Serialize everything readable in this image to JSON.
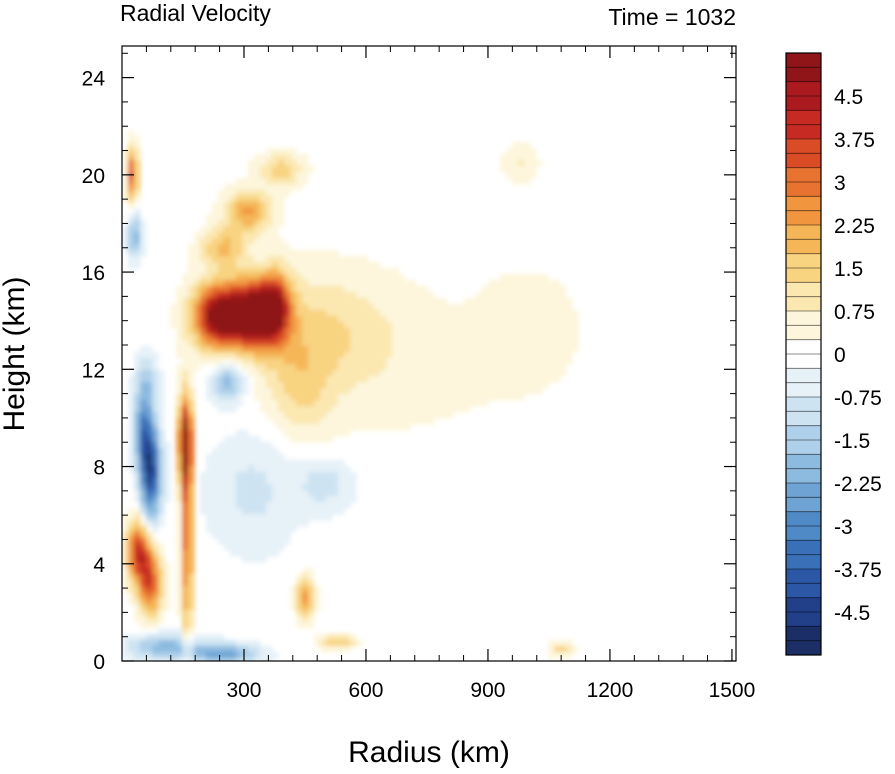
{
  "chart_data": {
    "type": "heatmap",
    "title": "Radial Velocity",
    "time_label": "Time = 1032",
    "xlabel": "Radius (km)",
    "ylabel": "Height (km)",
    "xlim": [
      0,
      1510
    ],
    "ylim": [
      0,
      25.3
    ],
    "x_ticks": [
      300,
      600,
      900,
      1200,
      1500
    ],
    "x_tick_labels": [
      "300",
      "600",
      "900",
      "1200",
      "1500"
    ],
    "y_ticks": [
      0,
      4,
      8,
      12,
      16,
      20,
      24
    ],
    "y_tick_labels": [
      "0",
      "4",
      "8",
      "12",
      "16",
      "20",
      "24"
    ],
    "colorbar": {
      "min": -5.25,
      "max": 5.25,
      "step": 0.25,
      "tick_labels": [
        "4.5",
        "3.75",
        "3",
        "2.25",
        "1.5",
        "0.75",
        "0",
        "-0.75",
        "-1.5",
        "-2.25",
        "-3",
        "-3.75",
        "-4.5"
      ],
      "tick_values": [
        4.5,
        3.75,
        3,
        2.25,
        1.5,
        0.75,
        0,
        -0.75,
        -1.5,
        -2.25,
        -3,
        -3.75,
        -4.5
      ],
      "colors": [
        "#1b2f66",
        "#223f8a",
        "#2b57a6",
        "#3a70b8",
        "#4f89c6",
        "#6ea3d4",
        "#8dbbe0",
        "#aed0ea",
        "#cde3f2",
        "#e6f1f8",
        "#ffffff",
        "#fdf6dc",
        "#fbe7b0",
        "#f8d380",
        "#f5b658",
        "#f1953f",
        "#e8722f",
        "#da4c26",
        "#c62a22",
        "#ab1a1f",
        "#8f1519"
      ]
    },
    "features": [
      {
        "r": 240,
        "z": 14.2,
        "sr": 45,
        "sz": 0.9,
        "v": 5.3
      },
      {
        "r": 330,
        "z": 14.3,
        "sr": 40,
        "sz": 0.9,
        "v": 5.3
      },
      {
        "r": 380,
        "z": 14.6,
        "sr": 25,
        "sz": 1.0,
        "v": 3.2
      },
      {
        "r": 470,
        "z": 13.5,
        "sr": 140,
        "sz": 1.8,
        "v": 1.2
      },
      {
        "r": 1000,
        "z": 13.8,
        "sr": 80,
        "sz": 1.5,
        "v": 0.6
      },
      {
        "r": 700,
        "z": 12.0,
        "sr": 250,
        "sz": 2.5,
        "v": 0.35
      },
      {
        "r": 155,
        "z": 9.0,
        "sr": 12,
        "sz": 1.3,
        "v": 4.8
      },
      {
        "r": 160,
        "z": 5.0,
        "sr": 10,
        "sz": 3.0,
        "v": 3.2
      },
      {
        "r": 70,
        "z": 7.8,
        "sr": 18,
        "sz": 1.4,
        "v": -4.5
      },
      {
        "r": 50,
        "z": 9.5,
        "sr": 15,
        "sz": 1.0,
        "v": -2.5
      },
      {
        "r": 40,
        "z": 4.5,
        "sr": 20,
        "sz": 0.9,
        "v": 3.8
      },
      {
        "r": 70,
        "z": 3.2,
        "sr": 20,
        "sz": 1.0,
        "v": 3.3
      },
      {
        "r": 25,
        "z": 20.0,
        "sr": 10,
        "sz": 0.8,
        "v": 3.5
      },
      {
        "r": 30,
        "z": 17.5,
        "sr": 12,
        "sz": 0.7,
        "v": -2.2
      },
      {
        "r": 60,
        "z": 11.5,
        "sr": 20,
        "sz": 0.8,
        "v": -1.5
      },
      {
        "r": 260,
        "z": 11.5,
        "sr": 30,
        "sz": 0.6,
        "v": -2.2
      },
      {
        "r": 250,
        "z": 17.0,
        "sr": 40,
        "sz": 0.6,
        "v": 1.8
      },
      {
        "r": 310,
        "z": 18.5,
        "sr": 40,
        "sz": 0.6,
        "v": 2.3
      },
      {
        "r": 390,
        "z": 20.2,
        "sr": 40,
        "sz": 0.5,
        "v": 1.5
      },
      {
        "r": 450,
        "z": 2.6,
        "sr": 15,
        "sz": 0.6,
        "v": 2.6
      },
      {
        "r": 320,
        "z": 7.0,
        "sr": 80,
        "sz": 1.8,
        "v": -0.9
      },
      {
        "r": 500,
        "z": 7.3,
        "sr": 50,
        "sz": 0.8,
        "v": -1.0
      },
      {
        "r": 250,
        "z": 0.3,
        "sr": 60,
        "sz": 0.3,
        "v": -2.5
      },
      {
        "r": 100,
        "z": 0.6,
        "sr": 60,
        "sz": 0.4,
        "v": -2.0
      },
      {
        "r": 530,
        "z": 0.8,
        "sr": 30,
        "sz": 0.2,
        "v": 1.8
      },
      {
        "r": 980,
        "z": 20.5,
        "sr": 30,
        "sz": 0.6,
        "v": 0.8
      },
      {
        "r": 1080,
        "z": 0.5,
        "sr": 20,
        "sz": 0.2,
        "v": 1.5
      },
      {
        "r": 440,
        "z": 11.0,
        "sr": 50,
        "sz": 1.5,
        "v": 0.9
      }
    ]
  }
}
